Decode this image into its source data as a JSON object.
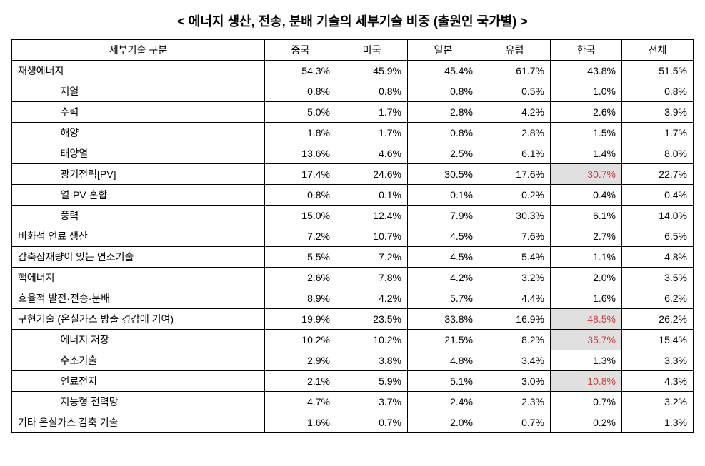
{
  "title": "< 에너지 생산, 전송, 분배 기술의 세부기술 비중 (출원인 국가별) >",
  "columns": [
    "세부기술 구분",
    "중국",
    "미국",
    "일본",
    "유럽",
    "한국",
    "전체"
  ],
  "rows": [
    {
      "type": "main",
      "label": "재생에너지",
      "vals": [
        "54.3%",
        "45.9%",
        "45.4%",
        "61.7%",
        "43.8%",
        "51.5%"
      ],
      "hl": [
        false,
        false,
        false,
        false,
        false,
        false
      ]
    },
    {
      "type": "sub",
      "label": "지열",
      "vals": [
        "0.8%",
        "0.8%",
        "0.8%",
        "0.5%",
        "1.0%",
        "0.8%"
      ],
      "hl": [
        false,
        false,
        false,
        false,
        false,
        false
      ]
    },
    {
      "type": "sub",
      "label": "수력",
      "vals": [
        "5.0%",
        "1.7%",
        "2.8%",
        "4.2%",
        "2.6%",
        "3.9%"
      ],
      "hl": [
        false,
        false,
        false,
        false,
        false,
        false
      ]
    },
    {
      "type": "sub",
      "label": "해양",
      "vals": [
        "1.8%",
        "1.7%",
        "0.8%",
        "2.8%",
        "1.5%",
        "1.7%"
      ],
      "hl": [
        false,
        false,
        false,
        false,
        false,
        false
      ]
    },
    {
      "type": "sub",
      "label": "태양열",
      "vals": [
        "13.6%",
        "4.6%",
        "2.5%",
        "6.1%",
        "1.4%",
        "8.0%"
      ],
      "hl": [
        false,
        false,
        false,
        false,
        false,
        false
      ]
    },
    {
      "type": "sub",
      "label": "광기전력[PV]",
      "vals": [
        "17.4%",
        "24.6%",
        "30.5%",
        "17.6%",
        "30.7%",
        "22.7%"
      ],
      "hl": [
        false,
        false,
        false,
        false,
        true,
        false
      ]
    },
    {
      "type": "sub",
      "label": "열-PV 혼합",
      "vals": [
        "0.8%",
        "0.1%",
        "0.1%",
        "0.2%",
        "0.4%",
        "0.4%"
      ],
      "hl": [
        false,
        false,
        false,
        false,
        false,
        false
      ]
    },
    {
      "type": "sub",
      "label": "풍력",
      "vals": [
        "15.0%",
        "12.4%",
        "7.9%",
        "30.3%",
        "6.1%",
        "14.0%"
      ],
      "hl": [
        false,
        false,
        false,
        false,
        false,
        false
      ]
    },
    {
      "type": "main",
      "label": "비화석 연료 생산",
      "vals": [
        "7.2%",
        "10.7%",
        "4.5%",
        "7.6%",
        "2.7%",
        "6.5%"
      ],
      "hl": [
        false,
        false,
        false,
        false,
        false,
        false
      ]
    },
    {
      "type": "main",
      "label": "감축잠재량이 있는 연소기술",
      "vals": [
        "5.5%",
        "7.2%",
        "4.5%",
        "5.4%",
        "1.1%",
        "4.8%"
      ],
      "hl": [
        false,
        false,
        false,
        false,
        false,
        false
      ]
    },
    {
      "type": "main",
      "label": "핵에너지",
      "vals": [
        "2.6%",
        "7.8%",
        "4.2%",
        "3.2%",
        "2.0%",
        "3.5%"
      ],
      "hl": [
        false,
        false,
        false,
        false,
        false,
        false
      ]
    },
    {
      "type": "main",
      "label": "효율적 발전·전송·분배",
      "vals": [
        "8.9%",
        "4.2%",
        "5.7%",
        "4.4%",
        "1.6%",
        "6.2%"
      ],
      "hl": [
        false,
        false,
        false,
        false,
        false,
        false
      ]
    },
    {
      "type": "main",
      "label": "구현기술 (온실가스 방출 경감에 기여)",
      "vals": [
        "19.9%",
        "23.5%",
        "33.8%",
        "16.9%",
        "48.5%",
        "26.2%"
      ],
      "hl": [
        false,
        false,
        false,
        false,
        true,
        false
      ]
    },
    {
      "type": "sub",
      "label": "에너지 저장",
      "vals": [
        "10.2%",
        "10.2%",
        "21.5%",
        "8.2%",
        "35.7%",
        "15.4%"
      ],
      "hl": [
        false,
        false,
        false,
        false,
        true,
        false
      ]
    },
    {
      "type": "sub",
      "label": "수소기술",
      "vals": [
        "2.9%",
        "3.8%",
        "4.8%",
        "3.4%",
        "1.3%",
        "3.3%"
      ],
      "hl": [
        false,
        false,
        false,
        false,
        false,
        false
      ]
    },
    {
      "type": "sub",
      "label": "연료전지",
      "vals": [
        "2.1%",
        "5.9%",
        "5.1%",
        "3.0%",
        "10.8%",
        "4.3%"
      ],
      "hl": [
        false,
        false,
        false,
        false,
        true,
        false
      ]
    },
    {
      "type": "sub",
      "label": "지능형 전력망",
      "vals": [
        "4.7%",
        "3.7%",
        "2.4%",
        "2.3%",
        "0.7%",
        "3.2%"
      ],
      "hl": [
        false,
        false,
        false,
        false,
        false,
        false
      ]
    },
    {
      "type": "main",
      "label": "기타 온실가스 감축 기술",
      "vals": [
        "1.6%",
        "0.7%",
        "2.0%",
        "0.7%",
        "0.2%",
        "1.3%"
      ],
      "hl": [
        false,
        false,
        false,
        false,
        false,
        false
      ]
    }
  ],
  "styles": {
    "highlight_bg": "#e0e0e0",
    "highlight_fg": "#d04040"
  }
}
